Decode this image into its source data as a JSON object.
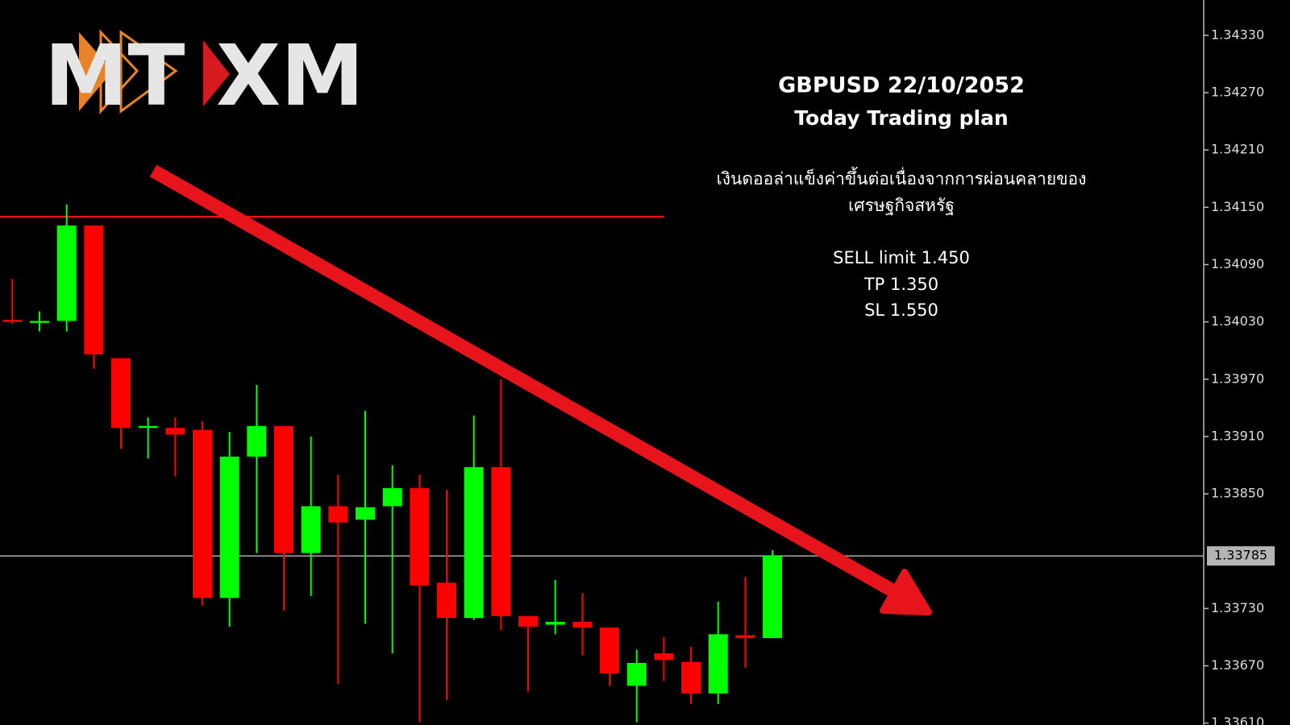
{
  "logo": {
    "left": "MT",
    "right": "XM"
  },
  "chart_data": {
    "type": "candlestick",
    "title": "GBPUSD 22/10/2052",
    "subtitle": "Today Trading plan",
    "annotations": [
      "เงินดออล่าแข็งค่าขึ้นต่อเนื่องจากการผ่อนคลายของ",
      "เศรษฐกิจสหรัฐ",
      "SELL limit 1.450",
      "TP 1.350",
      "SL 1.550"
    ],
    "up_color": "#00ff00",
    "down_color": "#ff0000",
    "ohlc": [
      [
        1.34032,
        1.34075,
        1.34028,
        1.3403
      ],
      [
        1.34029,
        1.34041,
        1.3402,
        1.34031
      ],
      [
        1.34031,
        1.34153,
        1.3402,
        1.34131
      ],
      [
        1.34131,
        1.34131,
        1.33981,
        1.33996
      ],
      [
        1.33992,
        1.33992,
        1.33897,
        1.33919
      ],
      [
        1.33919,
        1.3393,
        1.33887,
        1.33921
      ],
      [
        1.33919,
        1.3393,
        1.33868,
        1.33912
      ],
      [
        1.33917,
        1.33926,
        1.33733,
        1.33741
      ],
      [
        1.33741,
        1.33915,
        1.33711,
        1.33889
      ],
      [
        1.33889,
        1.33964,
        1.33788,
        1.33921
      ],
      [
        1.33921,
        1.33921,
        1.33728,
        1.33788
      ],
      [
        1.33788,
        1.3391,
        1.33743,
        1.33837
      ],
      [
        1.33837,
        1.3387,
        1.33651,
        1.3382
      ],
      [
        1.33823,
        1.33937,
        1.33714,
        1.33836
      ],
      [
        1.33837,
        1.3388,
        1.33683,
        1.33856
      ],
      [
        1.33856,
        1.3387,
        1.33611,
        1.33754
      ],
      [
        1.33757,
        1.33854,
        1.33634,
        1.3372
      ],
      [
        1.3372,
        1.33932,
        1.33718,
        1.33878
      ],
      [
        1.33878,
        1.3397,
        1.33707,
        1.33722
      ],
      [
        1.33722,
        1.33722,
        1.33643,
        1.33711
      ],
      [
        1.33713,
        1.3376,
        1.33703,
        1.33716
      ],
      [
        1.33716,
        1.33746,
        1.33681,
        1.3371
      ],
      [
        1.3371,
        1.3371,
        1.33649,
        1.33662
      ],
      [
        1.33649,
        1.33687,
        1.33611,
        1.33673
      ],
      [
        1.33683,
        1.337,
        1.33654,
        1.33676
      ],
      [
        1.33674,
        1.3369,
        1.3363,
        1.33641
      ],
      [
        1.33641,
        1.33737,
        1.3363,
        1.33703
      ],
      [
        1.33702,
        1.33763,
        1.33668,
        1.33699
      ],
      [
        1.33699,
        1.33791,
        1.33699,
        1.33785
      ]
    ],
    "hline": {
      "value": 1.3414,
      "color": "#e8141c"
    },
    "last_price": 1.33785,
    "ylim": [
      1.33608,
      1.34367
    ],
    "yticks": [
      {
        "value": 1.3433,
        "label": "1.34330"
      },
      {
        "value": 1.3427,
        "label": "1.34270"
      },
      {
        "value": 1.3421,
        "label": "1.34210"
      },
      {
        "value": 1.3415,
        "label": "1.34150"
      },
      {
        "value": 1.3409,
        "label": "1.34090"
      },
      {
        "value": 1.3403,
        "label": "1.34030"
      },
      {
        "value": 1.3397,
        "label": "1.33970"
      },
      {
        "value": 1.3391,
        "label": "1.33910"
      },
      {
        "value": 1.3385,
        "label": "1.33850"
      },
      {
        "value": 1.3373,
        "label": "1.33730"
      },
      {
        "value": 1.3367,
        "label": "1.33670"
      },
      {
        "value": 1.3361,
        "label": "1.33610"
      }
    ]
  }
}
